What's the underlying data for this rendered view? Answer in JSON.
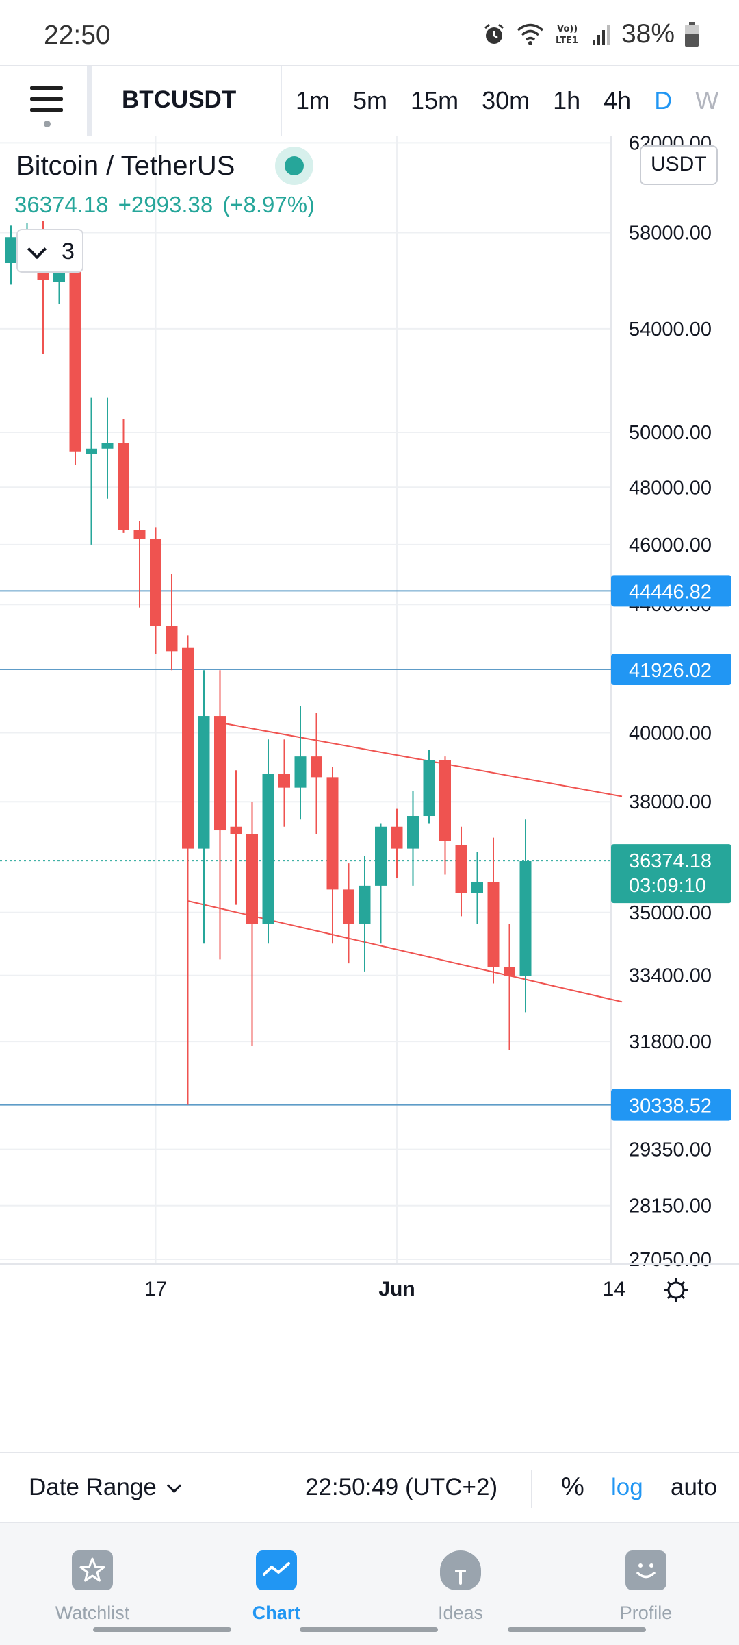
{
  "status_bar": {
    "time": "22:50",
    "battery_text": "38%",
    "icons": [
      "alarm-icon",
      "wifi-icon",
      "volte-icon",
      "signal-icon",
      "battery-icon"
    ],
    "volte_label_top": "Vo))",
    "volte_label_bottom": "LTE1"
  },
  "toolbar": {
    "symbol": "BTCUSDT",
    "intervals": [
      "1m",
      "5m",
      "15m",
      "30m",
      "1h",
      "4h",
      "D",
      "W"
    ],
    "active_interval": "D"
  },
  "legend": {
    "title": "Bitcoin / TetherUS",
    "last_price": "36374.18",
    "change": "+2993.38",
    "change_pct": "(+8.97%)",
    "collapsed_count": "3",
    "currency": "USDT"
  },
  "colors": {
    "up": "#26a69a",
    "down": "#ef5350",
    "accent": "#2196f3",
    "hline": "#5e9cc8",
    "trendline": "#ef5350"
  },
  "chart_data": {
    "type": "candlestick",
    "symbol": "BTCUSDT",
    "interval": "D",
    "scale": "log",
    "ylim": [
      27050,
      63000
    ],
    "y_ticks": [
      "62000.00",
      "58000.00",
      "54000.00",
      "50000.00",
      "48000.00",
      "46000.00",
      "44000.00",
      "40000.00",
      "38000.00",
      "35000.00",
      "33400.00",
      "31800.00",
      "29350.00",
      "28150.00",
      "27050.00"
    ],
    "x_tick_labels": [
      {
        "label": "17",
        "index": 9
      },
      {
        "label": "Jun",
        "index": 24
      },
      {
        "label": "14",
        "index": 37.5
      }
    ],
    "candles": [
      {
        "o": 56700,
        "h": 58300,
        "l": 55800,
        "c": 57800
      },
      {
        "o": 57700,
        "h": 58400,
        "l": 56900,
        "c": 58100
      },
      {
        "o": 58000,
        "h": 58500,
        "l": 53000,
        "c": 56000
      },
      {
        "o": 55900,
        "h": 56900,
        "l": 55000,
        "c": 56900
      },
      {
        "o": 56800,
        "h": 57800,
        "l": 48800,
        "c": 49300
      },
      {
        "o": 49200,
        "h": 51300,
        "l": 46000,
        "c": 49400
      },
      {
        "o": 49400,
        "h": 51300,
        "l": 47600,
        "c": 49600
      },
      {
        "o": 49600,
        "h": 50500,
        "l": 46400,
        "c": 46500
      },
      {
        "o": 46500,
        "h": 46800,
        "l": 43900,
        "c": 46200
      },
      {
        "o": 46200,
        "h": 46600,
        "l": 42400,
        "c": 43300
      },
      {
        "o": 43300,
        "h": 45000,
        "l": 41900,
        "c": 42500
      },
      {
        "o": 42600,
        "h": 43000,
        "l": 30338.52,
        "c": 36700
      },
      {
        "o": 36700,
        "h": 41900,
        "l": 34200,
        "c": 40500
      },
      {
        "o": 40500,
        "h": 41900,
        "l": 33800,
        "c": 37200
      },
      {
        "o": 37300,
        "h": 38900,
        "l": 35200,
        "c": 37100
      },
      {
        "o": 37100,
        "h": 38000,
        "l": 31700,
        "c": 34700
      },
      {
        "o": 34700,
        "h": 39800,
        "l": 34200,
        "c": 38800
      },
      {
        "o": 38800,
        "h": 39800,
        "l": 37300,
        "c": 38400
      },
      {
        "o": 38400,
        "h": 40800,
        "l": 37500,
        "c": 39300
      },
      {
        "o": 39300,
        "h": 40600,
        "l": 37100,
        "c": 38700
      },
      {
        "o": 38700,
        "h": 39000,
        "l": 34200,
        "c": 35600
      },
      {
        "o": 35600,
        "h": 36300,
        "l": 33700,
        "c": 34700
      },
      {
        "o": 34700,
        "h": 36500,
        "l": 33500,
        "c": 35700
      },
      {
        "o": 35700,
        "h": 37400,
        "l": 34200,
        "c": 37300
      },
      {
        "o": 37300,
        "h": 37800,
        "l": 35900,
        "c": 36700
      },
      {
        "o": 36700,
        "h": 38300,
        "l": 35700,
        "c": 37600
      },
      {
        "o": 37600,
        "h": 39500,
        "l": 37400,
        "c": 39200
      },
      {
        "o": 39200,
        "h": 39300,
        "l": 36000,
        "c": 36900
      },
      {
        "o": 36800,
        "h": 37300,
        "l": 34900,
        "c": 35500
      },
      {
        "o": 35500,
        "h": 36600,
        "l": 34700,
        "c": 35800
      },
      {
        "o": 35800,
        "h": 37000,
        "l": 33200,
        "c": 33600
      },
      {
        "o": 33600,
        "h": 34700,
        "l": 31600,
        "c": 33380
      },
      {
        "o": 33381,
        "h": 37500,
        "l": 32500,
        "c": 36374.18
      }
    ],
    "horizontal_levels": [
      "44446.82",
      "41926.02",
      "30338.52"
    ],
    "last_price_label": "36374.18",
    "countdown": "03:09:10",
    "channel_upper": [
      {
        "i": 13,
        "p": 40300
      },
      {
        "i": 38,
        "p": 38150
      }
    ],
    "channel_lower": [
      {
        "i": 11,
        "p": 35300
      },
      {
        "i": 38,
        "p": 32750
      }
    ]
  },
  "controls": {
    "date_range_label": "Date Range",
    "clock": "22:50:49 (UTC+2)",
    "percent_label": "%",
    "log_label": "log",
    "auto_label": "auto"
  },
  "bottom_nav": [
    {
      "label": "Watchlist",
      "icon": "star-icon",
      "active": false
    },
    {
      "label": "Chart",
      "icon": "chart-line-icon",
      "active": true
    },
    {
      "label": "Ideas",
      "icon": "lightbulb-icon",
      "active": false
    },
    {
      "label": "Profile",
      "icon": "smiley-icon",
      "active": false
    }
  ]
}
